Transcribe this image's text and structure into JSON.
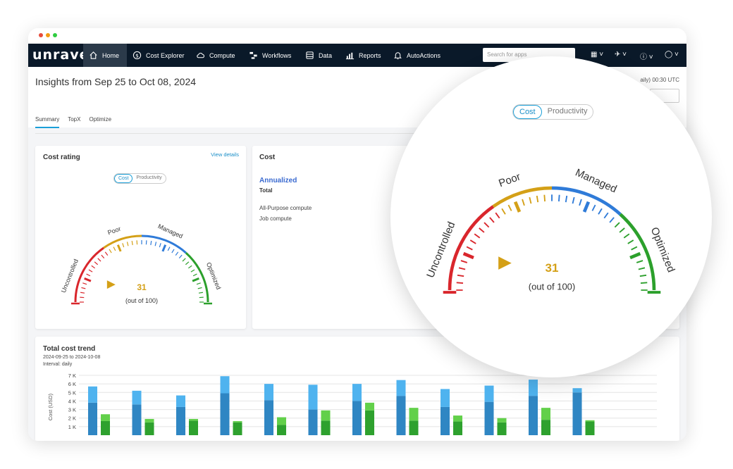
{
  "app": {
    "logo": "unravel"
  },
  "window_dots": [
    "#e74c3c",
    "#f39c12",
    "#2ecc40"
  ],
  "nav": {
    "items": [
      {
        "label": "Home",
        "icon": "home-icon"
      },
      {
        "label": "Cost Explorer",
        "icon": "dollar-icon"
      },
      {
        "label": "Compute",
        "icon": "cloud-icon"
      },
      {
        "label": "Workflows",
        "icon": "workflow-icon"
      },
      {
        "label": "Data",
        "icon": "database-icon"
      },
      {
        "label": "Reports",
        "icon": "reports-icon"
      },
      {
        "label": "AutoActions",
        "icon": "bell-icon"
      }
    ],
    "search_placeholder": "Search for apps",
    "right_icons": [
      "grid-icon",
      "rocket-icon",
      "help-icon",
      "user-icon"
    ]
  },
  "page": {
    "title": "Insights from Sep 25 to Oct 08, 2024",
    "timezone_text": "aily) 00:30 UTC",
    "tabs": [
      "Summary",
      "TopX",
      "Optimize"
    ],
    "active_tab": "Summary"
  },
  "cost_rating": {
    "title": "Cost rating",
    "view_details": "View details",
    "toggle": [
      "Cost",
      "Productivity"
    ],
    "gauge": {
      "labels": [
        "Uncontrolled",
        "Poor",
        "Managed",
        "Optimized"
      ],
      "value": "31",
      "out_of": "(out of 100)",
      "score": 31,
      "max": 100,
      "colors": [
        "#d9262c",
        "#d4a017",
        "#2f7bd8",
        "#2ca02c"
      ]
    }
  },
  "cost": {
    "title": "Cost",
    "annualized": "Annualized",
    "total": "Total",
    "rows": [
      "All-Purpose compute",
      "Job compute"
    ]
  },
  "trend": {
    "title": "Total cost trend",
    "range": "2024-09-25 to 2024-10-08",
    "interval": "Interval: daily"
  },
  "chart_data": {
    "type": "bar",
    "ylabel": "Cost (USD)",
    "yticks": [
      "1 K",
      "2 K",
      "3 K",
      "4 K",
      "5 K",
      "6 K",
      "7 K"
    ],
    "ylim": [
      0,
      7000
    ],
    "groups": [
      {
        "blue": [
          3800,
          1900
        ],
        "green": [
          1650,
          800
        ]
      },
      {
        "blue": [
          3600,
          1600
        ],
        "green": [
          1500,
          400
        ]
      },
      {
        "blue": [
          3300,
          1350
        ],
        "green": [
          1700,
          200
        ]
      },
      {
        "blue": [
          4900,
          2000
        ],
        "green": [
          1500,
          150
        ]
      },
      {
        "blue": [
          4100,
          1900
        ],
        "green": [
          1200,
          900
        ]
      },
      {
        "blue": [
          3000,
          2900
        ],
        "green": [
          1700,
          1200
        ]
      },
      {
        "blue": [
          4000,
          2000
        ],
        "green": [
          2900,
          900
        ]
      },
      {
        "blue": [
          4600,
          1850
        ],
        "green": [
          1700,
          1500
        ]
      },
      {
        "blue": [
          3300,
          2100
        ],
        "green": [
          1600,
          700
        ]
      },
      {
        "blue": [
          3900,
          1900
        ],
        "green": [
          1500,
          500
        ]
      },
      {
        "blue": [
          4600,
          1900
        ],
        "green": [
          1800,
          1400
        ]
      },
      {
        "blue": [
          5000,
          500
        ],
        "green": [
          1600,
          150
        ]
      }
    ],
    "colors": {
      "blue_dark": "#2f86c3",
      "blue_light": "#4fb3ef",
      "green_dark": "#2ea12e",
      "green_light": "#62d04a"
    }
  },
  "magnifier": {
    "toggle": [
      "Cost",
      "Productivity"
    ]
  }
}
